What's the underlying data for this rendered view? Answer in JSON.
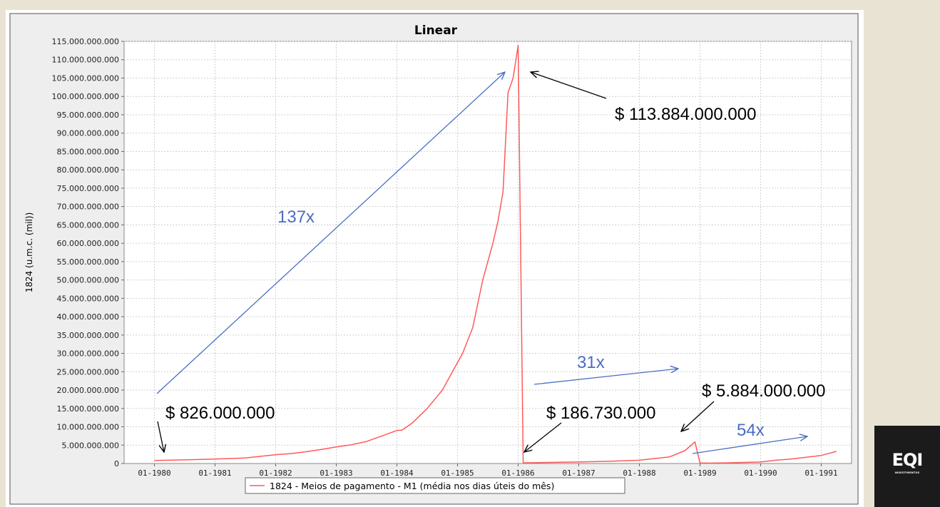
{
  "chart_data": {
    "type": "line",
    "title": "Linear",
    "ylabel": "1824 (u.m.c. (mil))",
    "xlabel": "",
    "ylim": [
      0,
      115000000000
    ],
    "xlim": [
      "1979-07",
      "1991-07"
    ],
    "grid": true,
    "legend_position": "bottom",
    "y_ticks": [
      "0",
      "5.000.000.000",
      "10.000.000.000",
      "15.000.000.000",
      "20.000.000.000",
      "25.000.000.000",
      "30.000.000.000",
      "35.000.000.000",
      "40.000.000.000",
      "45.000.000.000",
      "50.000.000.000",
      "55.000.000.000",
      "60.000.000.000",
      "65.000.000.000",
      "70.000.000.000",
      "75.000.000.000",
      "80.000.000.000",
      "85.000.000.000",
      "90.000.000.000",
      "95.000.000.000",
      "100.000.000.000",
      "105.000.000.000",
      "110.000.000.000",
      "115.000.000.000"
    ],
    "x_ticks": [
      "01-1980",
      "01-1981",
      "01-1982",
      "01-1983",
      "01-1984",
      "01-1985",
      "01-1986",
      "01-1987",
      "01-1988",
      "01-1989",
      "01-1990",
      "01-1991"
    ],
    "series": [
      {
        "name": "1824 - Meios de pagamento - M1 (média nos dias úteis do mês)",
        "color": "#ff5a5a",
        "x": [
          "1980-01",
          "1980-07",
          "1981-01",
          "1981-07",
          "1982-01",
          "1982-04",
          "1982-07",
          "1982-10",
          "1983-01",
          "1983-04",
          "1983-07",
          "1983-10",
          "1984-01",
          "1984-02",
          "1984-04",
          "1984-07",
          "1984-10",
          "1984-12",
          "1985-02",
          "1985-04",
          "1985-06",
          "1985-08",
          "1985-09",
          "1985-10",
          "1985-11",
          "1985-12",
          "1986-01",
          "1986-02",
          "1986-03",
          "1986-07",
          "1987-01",
          "1987-07",
          "1988-01",
          "1988-07",
          "1988-10",
          "1988-12",
          "1989-01",
          "1989-03",
          "1989-07",
          "1990-01",
          "1990-04",
          "1990-07",
          "1990-10",
          "1991-01",
          "1991-04"
        ],
        "values": [
          826000000,
          1000000000,
          1200000000,
          1500000000,
          2400000000,
          2700000000,
          3200000000,
          3800000000,
          4500000000,
          5100000000,
          6000000000,
          7500000000,
          9000000000,
          9100000000,
          11000000000,
          15000000000,
          20000000000,
          25000000000,
          30000000000,
          37000000000,
          50000000000,
          60000000000,
          66000000000,
          74000000000,
          101000000000,
          105000000000,
          113884000000,
          186730000,
          200000000,
          300000000,
          400000000,
          600000000,
          900000000,
          1800000000,
          3500000000,
          5884000000,
          150000000,
          100000000,
          200000000,
          400000000,
          900000000,
          1200000000,
          1700000000,
          2200000000,
          3300000000
        ]
      }
    ],
    "annotations": [
      {
        "text": "$ 113.884.000.000",
        "x": "1986-01",
        "y": 113884000000
      },
      {
        "text": "$ 826.000.000",
        "x": "1980-01",
        "y": 826000000
      },
      {
        "text": "$ 186.730.000",
        "x": "1986-02",
        "y": 186730000
      },
      {
        "text": "$ 5.884.000.000",
        "x": "1988-12",
        "y": 5884000000
      },
      {
        "text": "137x"
      },
      {
        "text": "31x"
      },
      {
        "text": "54x"
      }
    ],
    "annotation_colors": {
      "value_label": "#000000",
      "multiplier": "#4b6dbf",
      "arrow_black": "#000000",
      "arrow_blue": "#4a6fc2"
    }
  },
  "logo": {
    "mark": "EQI",
    "sub": "INVESTIMENTOS"
  }
}
